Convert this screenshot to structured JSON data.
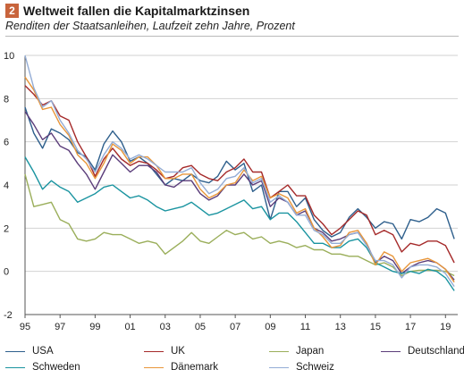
{
  "header": {
    "badge": "2",
    "title": "Weltweit fallen die Kapitalmarktzinsen",
    "subtitle": "Renditen der Staatsanleihen, Laufzeit zehn Jahre, Prozent"
  },
  "chart_data": {
    "type": "line",
    "title": "Weltweit fallen die Kapitalmarktzinsen",
    "subtitle": "Renditen der Staatsanleihen, Laufzeit zehn Jahre, Prozent",
    "xlabel": "",
    "ylabel": "",
    "xlim": [
      1995,
      2019.7
    ],
    "ylim": [
      -2,
      10
    ],
    "grid": "horizontal",
    "legend_position": "bottom",
    "x_ticks": [
      1995,
      1997,
      1999,
      2001,
      2003,
      2005,
      2007,
      2009,
      2011,
      2013,
      2015,
      2017,
      2019
    ],
    "x_tick_labels": [
      "95",
      "97",
      "99",
      "01",
      "03",
      "05",
      "07",
      "09",
      "11",
      "13",
      "15",
      "17",
      "19"
    ],
    "y_ticks": [
      -2,
      0,
      2,
      4,
      6,
      8,
      10
    ],
    "y_tick_labels": [
      "-2",
      "0",
      "2",
      "4",
      "6",
      "8",
      "10"
    ],
    "x": [
      1995.0,
      1995.5,
      1996.0,
      1996.5,
      1997.0,
      1997.5,
      1998.0,
      1998.5,
      1999.0,
      1999.5,
      2000.0,
      2000.5,
      2001.0,
      2001.5,
      2002.0,
      2002.5,
      2003.0,
      2003.5,
      2004.0,
      2004.5,
      2005.0,
      2005.5,
      2006.0,
      2006.5,
      2007.0,
      2007.5,
      2008.0,
      2008.5,
      2009.0,
      2009.5,
      2010.0,
      2010.5,
      2011.0,
      2011.5,
      2012.0,
      2012.5,
      2013.0,
      2013.5,
      2014.0,
      2014.5,
      2015.0,
      2015.5,
      2016.0,
      2016.5,
      2017.0,
      2017.5,
      2018.0,
      2018.5,
      2019.0,
      2019.5
    ],
    "series": [
      {
        "name": "USA",
        "color": "#2e5f8c",
        "values": [
          7.6,
          6.4,
          5.7,
          6.6,
          6.4,
          6.1,
          5.5,
          5.3,
          4.7,
          5.9,
          6.5,
          6.0,
          5.1,
          5.3,
          5.0,
          4.5,
          4.0,
          4.3,
          4.2,
          4.5,
          4.2,
          4.1,
          4.4,
          5.1,
          4.7,
          5.0,
          3.7,
          4.0,
          2.4,
          3.7,
          3.7,
          3.0,
          3.4,
          2.4,
          1.9,
          1.6,
          1.8,
          2.5,
          2.9,
          2.5,
          2.0,
          2.3,
          2.2,
          1.5,
          2.4,
          2.3,
          2.5,
          2.9,
          2.7,
          1.5
        ]
      },
      {
        "name": "UK",
        "color": "#a52a2a",
        "values": [
          8.6,
          8.2,
          7.7,
          7.9,
          7.2,
          7.0,
          6.0,
          5.3,
          4.4,
          5.2,
          5.7,
          5.2,
          4.9,
          5.1,
          5.0,
          4.7,
          4.3,
          4.4,
          4.8,
          4.9,
          4.5,
          4.3,
          4.2,
          4.6,
          4.8,
          5.2,
          4.6,
          4.6,
          3.4,
          3.7,
          4.0,
          3.5,
          3.5,
          2.6,
          2.2,
          1.7,
          2.0,
          2.4,
          2.8,
          2.6,
          1.7,
          1.9,
          1.7,
          0.9,
          1.3,
          1.2,
          1.4,
          1.4,
          1.2,
          0.4
        ]
      },
      {
        "name": "Japan",
        "color": "#9aae5a",
        "values": [
          4.5,
          3.0,
          3.1,
          3.2,
          2.4,
          2.2,
          1.5,
          1.4,
          1.5,
          1.8,
          1.7,
          1.7,
          1.5,
          1.3,
          1.4,
          1.3,
          0.8,
          1.1,
          1.4,
          1.8,
          1.4,
          1.3,
          1.6,
          1.9,
          1.7,
          1.8,
          1.5,
          1.6,
          1.3,
          1.4,
          1.3,
          1.1,
          1.2,
          1.0,
          1.0,
          0.8,
          0.8,
          0.7,
          0.7,
          0.5,
          0.3,
          0.4,
          0.2,
          -0.2,
          0.0,
          0.05,
          0.05,
          0.05,
          0.0,
          -0.2
        ]
      },
      {
        "name": "Deutschland",
        "color": "#5b3d7a",
        "values": [
          7.4,
          6.8,
          6.1,
          6.4,
          5.8,
          5.6,
          5.0,
          4.5,
          3.8,
          4.6,
          5.4,
          5.0,
          4.6,
          4.9,
          4.9,
          4.6,
          4.0,
          3.9,
          4.2,
          4.2,
          3.6,
          3.3,
          3.5,
          4.0,
          4.0,
          4.5,
          4.0,
          4.2,
          3.0,
          3.4,
          3.2,
          2.6,
          2.8,
          2.0,
          1.8,
          1.4,
          1.5,
          1.7,
          1.8,
          1.3,
          0.4,
          0.7,
          0.5,
          -0.1,
          0.2,
          0.4,
          0.5,
          0.4,
          0.1,
          -0.4
        ]
      },
      {
        "name": "Schweden",
        "color": "#1a94a0",
        "values": [
          5.3,
          4.6,
          3.8,
          4.2,
          3.9,
          3.7,
          3.2,
          3.4,
          3.6,
          3.9,
          4.0,
          3.7,
          3.4,
          3.5,
          3.3,
          3.0,
          2.8,
          2.9,
          3.0,
          3.2,
          2.9,
          2.6,
          2.7,
          2.9,
          3.1,
          3.3,
          2.9,
          3.0,
          2.4,
          2.7,
          2.7,
          2.3,
          1.8,
          1.3,
          1.3,
          1.1,
          1.1,
          1.4,
          1.5,
          1.1,
          0.4,
          0.2,
          0.0,
          -0.1,
          0.0,
          -0.1,
          0.1,
          0.0,
          -0.3,
          -0.9
        ]
      },
      {
        "name": "Dänemark",
        "color": "#e8963a",
        "values": [
          9.0,
          8.4,
          7.5,
          7.6,
          6.8,
          6.3,
          5.4,
          5.0,
          4.3,
          5.0,
          5.9,
          5.6,
          5.0,
          5.3,
          5.3,
          4.9,
          4.3,
          4.3,
          4.5,
          4.5,
          3.8,
          3.4,
          3.6,
          4.0,
          4.1,
          4.7,
          4.2,
          4.4,
          3.4,
          3.6,
          3.4,
          2.7,
          2.9,
          2.0,
          1.6,
          1.1,
          1.2,
          1.8,
          1.9,
          1.3,
          0.3,
          0.9,
          0.7,
          0.0,
          0.4,
          0.5,
          0.6,
          0.4,
          0.1,
          -0.5
        ]
      },
      {
        "name": "Schweiz",
        "color": "#93acd5",
        "values": [
          10.0,
          8.5,
          7.6,
          7.9,
          7.0,
          6.4,
          5.6,
          5.2,
          4.6,
          5.4,
          6.0,
          5.7,
          5.2,
          5.4,
          5.2,
          4.9,
          4.6,
          4.6,
          4.6,
          4.8,
          4.1,
          3.6,
          3.8,
          4.3,
          4.4,
          4.8,
          4.1,
          4.3,
          3.2,
          3.5,
          3.2,
          2.6,
          2.6,
          1.9,
          1.7,
          1.3,
          1.3,
          1.7,
          1.8,
          1.2,
          0.5,
          0.5,
          0.3,
          -0.3,
          0.2,
          0.3,
          0.3,
          0.2,
          -0.1,
          -0.7
        ]
      }
    ]
  }
}
